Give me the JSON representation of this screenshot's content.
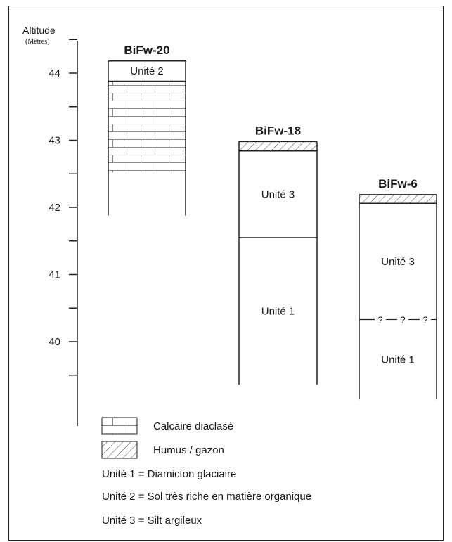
{
  "axis": {
    "label": "Altitude",
    "unit": "(Mètres)",
    "ticks": [
      {
        "value": 44,
        "label": "44"
      },
      {
        "value": 43,
        "label": "43"
      },
      {
        "value": 42,
        "label": "42"
      },
      {
        "value": 41,
        "label": "41"
      },
      {
        "value": 40,
        "label": "40"
      }
    ],
    "range": [
      39.1,
      44.6
    ]
  },
  "columns": [
    {
      "name": "BiFw-20",
      "top": 44.18,
      "bottom": 41.88,
      "layers": [
        {
          "label": "Unité 2",
          "top": 44.18,
          "bottom": 43.88,
          "pattern": "none"
        },
        {
          "label": "",
          "top": 43.88,
          "bottom": 42.52,
          "pattern": "limestone"
        }
      ]
    },
    {
      "name": "BiFw-18",
      "top": 42.98,
      "bottom": 39.36,
      "layers": [
        {
          "label": "",
          "top": 42.98,
          "bottom": 42.84,
          "pattern": "humus"
        },
        {
          "label": "Unité 3",
          "top": 42.84,
          "bottom": 41.55,
          "pattern": "none"
        },
        {
          "label": "Unité 1",
          "top": 41.55,
          "bottom": 39.36,
          "pattern": "none"
        }
      ]
    },
    {
      "name": "BiFw-6",
      "top": 42.19,
      "bottom": 39.14,
      "layers": [
        {
          "label": "",
          "top": 42.19,
          "bottom": 42.06,
          "pattern": "humus"
        },
        {
          "label": "Unité 3",
          "top": 42.06,
          "bottom": 40.33,
          "pattern": "none",
          "uncertain_base_label": "?—?—?"
        },
        {
          "label": "Unité 1",
          "top": 40.33,
          "bottom": 39.14,
          "pattern": "none"
        }
      ]
    }
  ],
  "legend": {
    "symbols": [
      {
        "pattern": "limestone",
        "label": "Calcaire diaclasé"
      },
      {
        "pattern": "humus",
        "label": "Humus / gazon"
      }
    ],
    "definitions": [
      "Unité 1 = Diamicton glaciaire",
      "Unité 2 = Sol très riche en matière organique",
      "Unité 3 = Silt argileux"
    ]
  }
}
